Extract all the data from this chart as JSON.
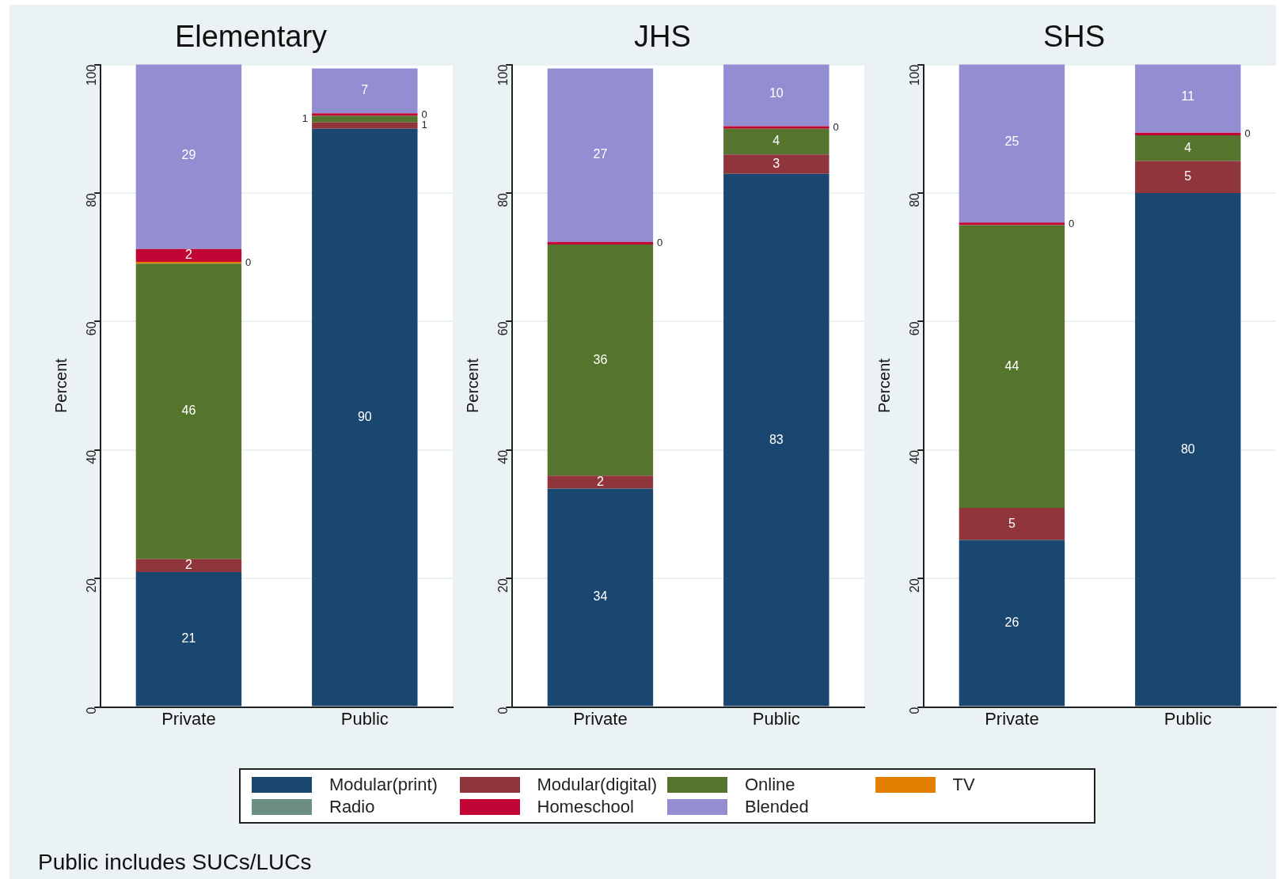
{
  "chart_data": [
    {
      "type": "bar",
      "title": "Elementary",
      "ylabel": "Percent",
      "categories": [
        "Private",
        "Public"
      ],
      "stacked": true,
      "ylim": [
        0,
        100
      ],
      "yticks": [
        0,
        20,
        40,
        60,
        80,
        100
      ],
      "grid": "y",
      "legend": "bottom",
      "annotations": [
        "Public includes SUCs/LUCs"
      ],
      "series": [
        {
          "name": "Modular(print)",
          "color": "#1a476f",
          "values": [
            21,
            90
          ],
          "value_labels": [
            "21",
            "90"
          ]
        },
        {
          "name": "Modular(digital)",
          "color": "#90353b",
          "values": [
            2,
            1
          ],
          "value_labels": [
            "2",
            "1"
          ]
        },
        {
          "name": "Online",
          "color": "#55752f",
          "values": [
            46,
            1
          ],
          "value_labels": [
            "46",
            "1"
          ]
        },
        {
          "name": "TV",
          "color": "#e37e00",
          "values": [
            0.3,
            0
          ],
          "value_labels": [
            "0",
            null
          ]
        },
        {
          "name": "Radio",
          "color": "#6e8e84",
          "values": [
            0,
            0
          ],
          "value_labels": [
            null,
            null
          ]
        },
        {
          "name": "Homeschool",
          "color": "#c10534",
          "values": [
            2,
            0.4
          ],
          "value_labels": [
            "2",
            "0"
          ]
        },
        {
          "name": "Blended",
          "color": "#938dd2",
          "values": [
            29,
            7
          ],
          "value_labels": [
            "29",
            "7"
          ]
        }
      ]
    },
    {
      "type": "bar",
      "title": "JHS",
      "ylabel": "Percent",
      "categories": [
        "Private",
        "Public"
      ],
      "stacked": true,
      "ylim": [
        0,
        100
      ],
      "yticks": [
        0,
        20,
        40,
        60,
        80,
        100
      ],
      "grid": "y",
      "series": [
        {
          "color": "#1a476f",
          "values": [
            34,
            83
          ],
          "value_labels": [
            "34",
            "83"
          ]
        },
        {
          "color": "#90353b",
          "values": [
            2,
            3
          ],
          "value_labels": [
            "2",
            "3"
          ]
        },
        {
          "color": "#55752f",
          "values": [
            36,
            4
          ],
          "value_labels": [
            "36",
            "4"
          ]
        },
        {
          "color": "#e37e00",
          "values": [
            0,
            0
          ],
          "value_labels": [
            null,
            null
          ]
        },
        {
          "color": "#6e8e84",
          "values": [
            0,
            0
          ],
          "value_labels": [
            null,
            null
          ]
        },
        {
          "color": "#c10534",
          "values": [
            0.4,
            0.4
          ],
          "value_labels": [
            "0",
            "0"
          ]
        },
        {
          "color": "#938dd2",
          "values": [
            27,
            10
          ],
          "value_labels": [
            "27",
            "10"
          ]
        }
      ]
    },
    {
      "type": "bar",
      "title": "SHS",
      "ylabel": "Percent",
      "categories": [
        "Private",
        "Public"
      ],
      "stacked": true,
      "ylim": [
        0,
        100
      ],
      "yticks": [
        0,
        20,
        40,
        60,
        80,
        100
      ],
      "grid": "y",
      "series": [
        {
          "color": "#1a476f",
          "values": [
            26,
            80
          ],
          "value_labels": [
            "26",
            "80"
          ]
        },
        {
          "color": "#90353b",
          "values": [
            5,
            5
          ],
          "value_labels": [
            "5",
            "5"
          ]
        },
        {
          "color": "#55752f",
          "values": [
            44,
            4
          ],
          "value_labels": [
            "44",
            "4"
          ]
        },
        {
          "color": "#e37e00",
          "values": [
            0,
            0
          ],
          "value_labels": [
            null,
            null
          ]
        },
        {
          "color": "#6e8e84",
          "values": [
            0,
            0
          ],
          "value_labels": [
            null,
            null
          ]
        },
        {
          "color": "#c10534",
          "values": [
            0.4,
            0.4
          ],
          "value_labels": [
            "0",
            "0"
          ]
        },
        {
          "color": "#938dd2",
          "values": [
            25,
            11
          ],
          "value_labels": [
            "25",
            "11"
          ]
        }
      ]
    }
  ]
}
